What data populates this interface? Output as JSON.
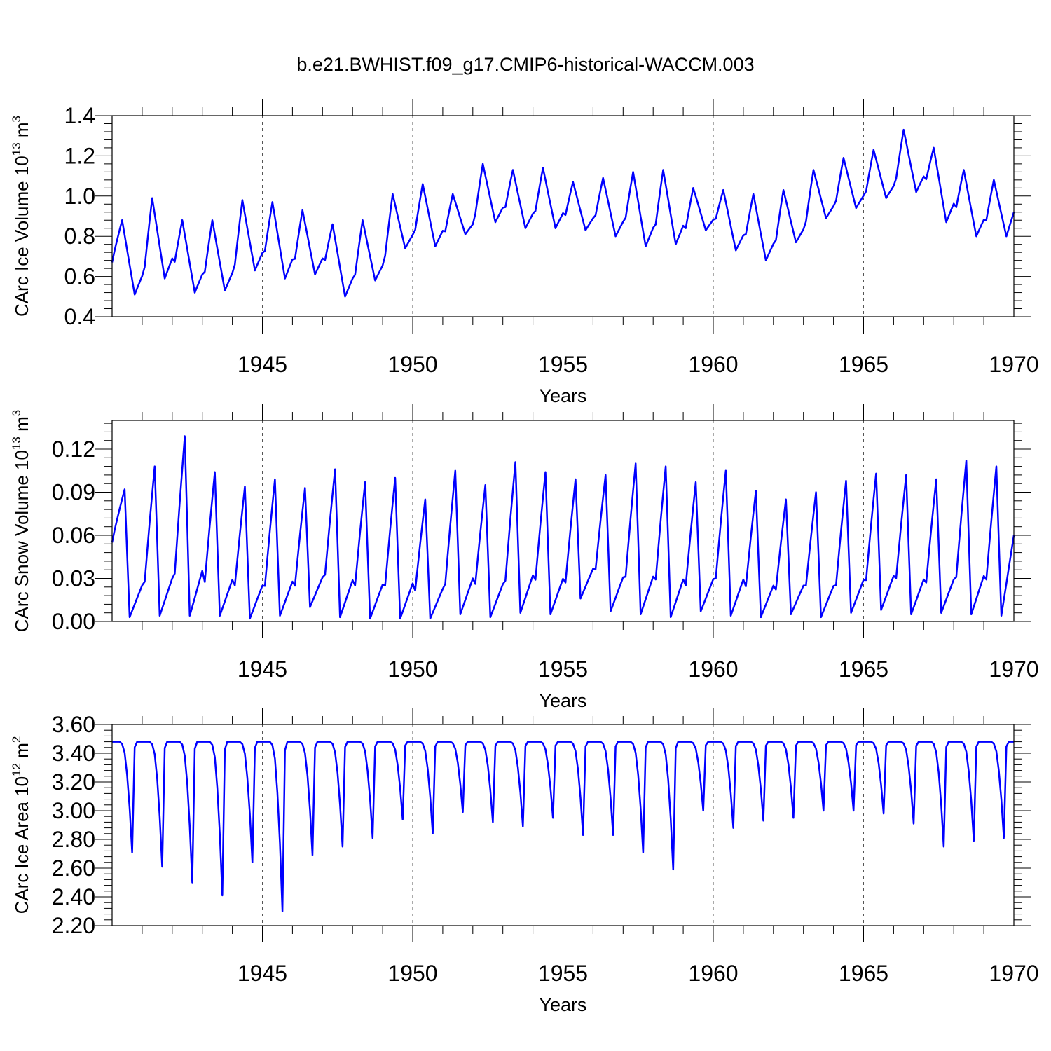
{
  "title": "b.e21.BWHIST.f09_g17.CMIP6-historical-WACCM.003",
  "chart_data": [
    {
      "type": "line",
      "id": "ice-volume",
      "ylabel_main": "CArc Ice Volume 10",
      "ylabel_exp": "13",
      "ylabel_unit": " m",
      "ylabel_unit_exp": "3",
      "xlabel": "Years",
      "xlim": [
        1940,
        1970
      ],
      "ylim": [
        0.4,
        1.4
      ],
      "yticks": [
        0.4,
        0.6,
        0.8,
        1.0,
        1.2,
        1.4
      ],
      "yticklabels": [
        "0.4",
        "0.6",
        "0.8",
        "1.0",
        "1.2",
        "1.4"
      ],
      "xticks": [
        1945,
        1950,
        1955,
        1960,
        1965,
        1970
      ],
      "xticklabels": [
        "1945",
        "1950",
        "1955",
        "1960",
        "1965",
        "1970"
      ],
      "color": "#0000ff",
      "annual_max": [
        0.88,
        0.99,
        0.88,
        0.88,
        0.98,
        0.97,
        0.93,
        0.86,
        0.88,
        1.01,
        1.06,
        1.01,
        1.16,
        1.13,
        1.14,
        1.07,
        1.09,
        1.12,
        1.13,
        1.04,
        1.03,
        1.01,
        1.03,
        1.13,
        1.19,
        1.23,
        1.33,
        1.24,
        1.13,
        1.08
      ],
      "annual_min": [
        0.51,
        0.59,
        0.52,
        0.53,
        0.63,
        0.59,
        0.61,
        0.5,
        0.58,
        0.74,
        0.75,
        0.81,
        0.87,
        0.84,
        0.84,
        0.83,
        0.8,
        0.75,
        0.76,
        0.83,
        0.73,
        0.68,
        0.77,
        0.89,
        0.94,
        0.99,
        1.02,
        0.87,
        0.8,
        0.8
      ],
      "start_value": 0.67,
      "end_value": 0.92
    },
    {
      "type": "line",
      "id": "snow-volume",
      "ylabel_main": "CArc Snow Volume 10",
      "ylabel_exp": "13",
      "ylabel_unit": " m",
      "ylabel_unit_exp": "3",
      "xlabel": "Years",
      "xlim": [
        1940,
        1970
      ],
      "ylim": [
        0.0,
        0.14
      ],
      "yticks": [
        0.0,
        0.03,
        0.06,
        0.09,
        0.12
      ],
      "yticklabels": [
        "0.00",
        "0.03",
        "0.06",
        "0.09",
        "0.12"
      ],
      "xticks": [
        1945,
        1950,
        1955,
        1960,
        1965,
        1970
      ],
      "xticklabels": [
        "1945",
        "1950",
        "1955",
        "1960",
        "1965",
        "1970"
      ],
      "color": "#0000ff",
      "annual_max": [
        0.092,
        0.108,
        0.129,
        0.104,
        0.094,
        0.099,
        0.093,
        0.106,
        0.097,
        0.1,
        0.085,
        0.105,
        0.095,
        0.111,
        0.104,
        0.099,
        0.102,
        0.11,
        0.108,
        0.097,
        0.105,
        0.091,
        0.085,
        0.09,
        0.098,
        0.103,
        0.102,
        0.099,
        0.112,
        0.108
      ],
      "annual_min": [
        0.003,
        0.004,
        0.004,
        0.004,
        0.002,
        0.004,
        0.01,
        0.003,
        0.002,
        0.002,
        0.002,
        0.005,
        0.003,
        0.006,
        0.005,
        0.016,
        0.007,
        0.005,
        0.003,
        0.007,
        0.004,
        0.003,
        0.005,
        0.003,
        0.006,
        0.008,
        0.005,
        0.006,
        0.005,
        0.004
      ],
      "start_value": 0.055,
      "end_value": 0.06
    },
    {
      "type": "line",
      "id": "ice-area",
      "ylabel_main": "CArc Ice Area 10",
      "ylabel_exp": "12",
      "ylabel_unit": " m",
      "ylabel_unit_exp": "2",
      "xlabel": "Years",
      "xlim": [
        1940,
        1970
      ],
      "ylim": [
        2.2,
        3.6
      ],
      "yticks": [
        2.2,
        2.4,
        2.6,
        2.8,
        3.0,
        3.2,
        3.4,
        3.6
      ],
      "yticklabels": [
        "2.20",
        "2.40",
        "2.60",
        "2.80",
        "3.00",
        "3.20",
        "3.40",
        "3.60"
      ],
      "xticks": [
        1945,
        1950,
        1955,
        1960,
        1965,
        1970
      ],
      "xticklabels": [
        "1945",
        "1950",
        "1955",
        "1960",
        "1965",
        "1970"
      ],
      "color": "#0000ff",
      "annual_max": [
        3.48,
        3.48,
        3.48,
        3.48,
        3.48,
        3.48,
        3.48,
        3.48,
        3.48,
        3.48,
        3.48,
        3.48,
        3.48,
        3.48,
        3.48,
        3.48,
        3.48,
        3.48,
        3.48,
        3.48,
        3.48,
        3.48,
        3.48,
        3.48,
        3.48,
        3.48,
        3.48,
        3.48,
        3.48,
        3.48
      ],
      "annual_min": [
        2.71,
        2.61,
        2.5,
        2.41,
        2.64,
        2.3,
        2.69,
        2.75,
        2.81,
        2.94,
        2.84,
        2.99,
        2.92,
        2.89,
        2.95,
        2.83,
        2.83,
        2.71,
        2.59,
        3.0,
        2.88,
        2.93,
        2.95,
        3.0,
        3.0,
        2.98,
        2.91,
        2.75,
        2.79,
        2.81
      ],
      "start_value": 3.48,
      "end_value": 3.48
    }
  ]
}
